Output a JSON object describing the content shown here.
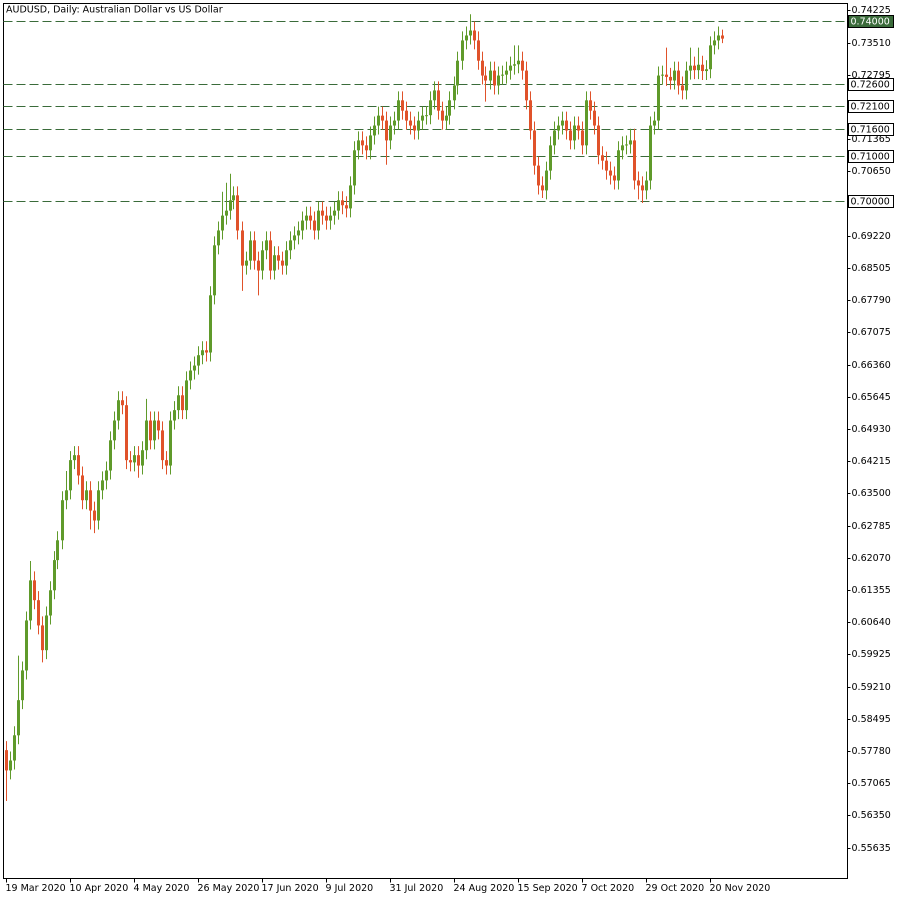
{
  "chart_data": {
    "type": "candlestick",
    "title": "AUDUSD, Daily:  Australian Dollar vs US Dollar",
    "up_color": "#5f9a2a",
    "down_color": "#e0522a",
    "level_color": "#3a6b3a",
    "ylim": [
      0.5495,
      0.7438
    ],
    "xlim": [
      -0.5,
      210.5
    ],
    "yticks": [
      0.74225,
      {
        "value": 0.7351,
        "label": "0.73510"
      },
      0.72795,
      0.71365,
      {
        "value": 0.7065,
        "label": "0.70650"
      },
      {
        "value": 0.6922,
        "label": "0.69220"
      },
      0.68505,
      {
        "value": 0.6779,
        "label": "0.67790"
      },
      0.67075,
      {
        "value": 0.6636,
        "label": "0.66360"
      },
      0.65645,
      {
        "value": 0.6493,
        "label": "0.64930"
      },
      0.64215,
      {
        "value": 0.635,
        "label": "0.63500"
      },
      0.62785,
      {
        "value": 0.6207,
        "label": "0.62070"
      },
      0.61355,
      {
        "value": 0.6064,
        "label": "0.60640"
      },
      0.59925,
      {
        "value": 0.5921,
        "label": "0.59210"
      },
      0.58495,
      {
        "value": 0.5778,
        "label": "0.57780"
      },
      0.57065,
      {
        "value": 0.5635,
        "label": "0.56350"
      },
      0.55635
    ],
    "xticks": [
      {
        "value": 0,
        "label": "19 Mar 2020"
      },
      {
        "value": 16,
        "label": "10 Apr 2020"
      },
      {
        "value": 32,
        "label": "4 May 2020"
      },
      {
        "value": 48,
        "label": "26 May 2020"
      },
      {
        "value": 64,
        "label": "17 Jun 2020"
      },
      {
        "value": 80,
        "label": "9 Jul 2020"
      },
      {
        "value": 96,
        "label": "31 Jul 2020"
      },
      {
        "value": 112,
        "label": "24 Aug 2020"
      },
      {
        "value": 128,
        "label": "15 Sep 2020"
      },
      {
        "value": 144,
        "label": "7 Oct 2020"
      },
      {
        "value": 160,
        "label": "29 Oct 2020"
      },
      {
        "value": 176,
        "label": "20 Nov 2020"
      }
    ],
    "levels": [
      {
        "value": 0.74,
        "label": "0.74000",
        "highlight": true
      },
      {
        "value": 0.726,
        "label": "0.72600"
      },
      {
        "value": 0.721,
        "label": "0.72100"
      },
      {
        "value": 0.716,
        "label": "0.71600"
      },
      {
        "value": 0.71,
        "label": "0.71000"
      },
      {
        "value": 0.7,
        "label": "0.70000"
      }
    ],
    "open": [
      0.578,
      0.5735,
      0.5757,
      0.5813,
      0.5891,
      0.5957,
      0.6068,
      0.6157,
      0.6113,
      0.6057,
      0.6002,
      0.6079,
      0.6135,
      0.6202,
      0.6246,
      0.6335,
      0.6357,
      0.6424,
      0.6435,
      0.639,
      0.6335,
      0.6357,
      0.6312,
      0.629,
      0.6357,
      0.6379,
      0.6401,
      0.6468,
      0.6512,
      0.6557,
      0.6546,
      0.6424,
      0.6419,
      0.6435,
      0.6412,
      0.6446,
      0.6512,
      0.6468,
      0.6512,
      0.649,
      0.6424,
      0.6412,
      0.6512,
      0.6535,
      0.6568,
      0.6535,
      0.6601,
      0.6623,
      0.6634,
      0.6657,
      0.6668,
      0.6663,
      0.679,
      0.6901,
      0.6934,
      0.6967,
      0.6978,
      0.7001,
      0.7012,
      0.6934,
      0.6856,
      0.6867,
      0.6912,
      0.6867,
      0.6845,
      0.689,
      0.6912,
      0.6845,
      0.6879,
      0.6867,
      0.6856,
      0.689,
      0.6912,
      0.6923,
      0.6934,
      0.6956,
      0.6967,
      0.6956,
      0.6934,
      0.6978,
      0.6967,
      0.6956,
      0.6967,
      0.6978,
      0.7001,
      0.699,
      0.6983,
      0.7034,
      0.7112,
      0.7134,
      0.7123,
      0.7112,
      0.7145,
      0.7167,
      0.7189,
      0.7178,
      0.7134,
      0.7167,
      0.7178,
      0.7223,
      0.72,
      0.7178,
      0.7167,
      0.7156,
      0.7178,
      0.7189,
      0.719,
      0.7223,
      0.7245,
      0.72,
      0.7178,
      0.7189,
      0.7223,
      0.7256,
      0.7311,
      0.7356,
      0.7367,
      0.7378,
      0.7356,
      0.7311,
      0.7278,
      0.7267,
      0.7289,
      0.7256,
      0.7278,
      0.728,
      0.7289,
      0.73,
      0.7303,
      0.7311,
      0.7289,
      0.7223,
      0.7156,
      0.7078,
      0.7034,
      0.7023,
      0.7067,
      0.7123,
      0.7156,
      0.7167,
      0.7178,
      0.7156,
      0.7134,
      0.7167,
      0.7156,
      0.7123,
      0.7223,
      0.72,
      0.7167,
      0.7101,
      0.7089,
      0.7067,
      0.7056,
      0.7045,
      0.7112,
      0.7123,
      0.7125,
      0.7134,
      0.7045,
      0.7034,
      0.7023,
      0.7045,
      0.7167,
      0.7178,
      0.7278,
      0.728,
      0.7275,
      0.7267,
      0.7289,
      0.7256,
      0.7245,
      0.7289,
      0.73,
      0.729,
      0.7302,
      0.7288,
      0.7292,
      0.7345,
      0.7356,
      0.7367
    ],
    "high": [
      0.58,
      0.5777,
      0.5833,
      0.599,
      0.5977,
      0.6088,
      0.62,
      0.6177,
      0.6133,
      0.6077,
      0.6099,
      0.6155,
      0.6222,
      0.6266,
      0.6355,
      0.64,
      0.6444,
      0.6455,
      0.6455,
      0.641,
      0.6377,
      0.6377,
      0.6332,
      0.6377,
      0.6399,
      0.6421,
      0.6488,
      0.6532,
      0.6577,
      0.6577,
      0.6566,
      0.6444,
      0.6455,
      0.6455,
      0.6466,
      0.656,
      0.6532,
      0.6532,
      0.6532,
      0.651,
      0.6444,
      0.6532,
      0.6555,
      0.6588,
      0.6588,
      0.6621,
      0.6643,
      0.6654,
      0.6677,
      0.6688,
      0.6688,
      0.681,
      0.6921,
      0.6954,
      0.702,
      0.704,
      0.706,
      0.7032,
      0.7032,
      0.6954,
      0.6887,
      0.6932,
      0.6932,
      0.6887,
      0.691,
      0.6932,
      0.6932,
      0.6899,
      0.6899,
      0.6887,
      0.691,
      0.6932,
      0.6943,
      0.6954,
      0.6976,
      0.6987,
      0.6987,
      0.6976,
      0.6998,
      0.6998,
      0.6987,
      0.6987,
      0.6998,
      0.7021,
      0.7021,
      0.701,
      0.7054,
      0.7132,
      0.7154,
      0.7154,
      0.7143,
      0.7165,
      0.7187,
      0.7209,
      0.7209,
      0.7198,
      0.7187,
      0.7198,
      0.7243,
      0.7243,
      0.722,
      0.7198,
      0.7187,
      0.7198,
      0.7209,
      0.721,
      0.7243,
      0.7265,
      0.7265,
      0.722,
      0.7209,
      0.7243,
      0.7276,
      0.7331,
      0.7376,
      0.7387,
      0.7414,
      0.7398,
      0.7376,
      0.7331,
      0.7298,
      0.7309,
      0.7309,
      0.7298,
      0.73,
      0.7309,
      0.732,
      0.7345,
      0.7345,
      0.7331,
      0.7309,
      0.7243,
      0.7176,
      0.7098,
      0.7054,
      0.7087,
      0.7143,
      0.7176,
      0.7187,
      0.7198,
      0.7198,
      0.7176,
      0.7187,
      0.7187,
      0.7176,
      0.7243,
      0.7243,
      0.722,
      0.7187,
      0.7121,
      0.7109,
      0.7087,
      0.7076,
      0.7132,
      0.7143,
      0.7145,
      0.716,
      0.716,
      0.7065,
      0.7054,
      0.7065,
      0.7187,
      0.7198,
      0.7298,
      0.73,
      0.734,
      0.7295,
      0.7309,
      0.7309,
      0.7276,
      0.7309,
      0.734,
      0.732,
      0.734,
      0.7322,
      0.7312,
      0.7365,
      0.7376,
      0.7387,
      0.738
    ],
    "low": [
      0.5667,
      0.5715,
      0.5737,
      0.5793,
      0.5871,
      0.5937,
      0.6048,
      0.6093,
      0.6037,
      0.5975,
      0.5982,
      0.6059,
      0.6115,
      0.6182,
      0.6226,
      0.6315,
      0.6337,
      0.6404,
      0.637,
      0.6315,
      0.6315,
      0.627,
      0.6262,
      0.627,
      0.6337,
      0.6359,
      0.6381,
      0.6448,
      0.6492,
      0.6526,
      0.6404,
      0.6399,
      0.6399,
      0.6385,
      0.6392,
      0.6426,
      0.6448,
      0.6448,
      0.647,
      0.6404,
      0.6392,
      0.6392,
      0.6492,
      0.6515,
      0.6515,
      0.6515,
      0.6581,
      0.6603,
      0.6614,
      0.6637,
      0.6643,
      0.6643,
      0.677,
      0.6881,
      0.6914,
      0.6947,
      0.6958,
      0.6981,
      0.6914,
      0.68,
      0.6836,
      0.6847,
      0.6847,
      0.679,
      0.6825,
      0.687,
      0.6825,
      0.6825,
      0.6847,
      0.6836,
      0.6836,
      0.687,
      0.6892,
      0.6903,
      0.6914,
      0.6936,
      0.6936,
      0.6914,
      0.6914,
      0.6947,
      0.6936,
      0.6936,
      0.6947,
      0.6958,
      0.697,
      0.6963,
      0.6963,
      0.7014,
      0.7092,
      0.7103,
      0.7092,
      0.7092,
      0.7125,
      0.7147,
      0.7158,
      0.708,
      0.7114,
      0.7147,
      0.7158,
      0.718,
      0.7158,
      0.7147,
      0.7136,
      0.7136,
      0.7158,
      0.7169,
      0.717,
      0.7203,
      0.718,
      0.7158,
      0.7158,
      0.7169,
      0.7203,
      0.7236,
      0.7291,
      0.7336,
      0.7347,
      0.7336,
      0.7291,
      0.7258,
      0.722,
      0.7247,
      0.7236,
      0.7236,
      0.7258,
      0.726,
      0.7269,
      0.728,
      0.7283,
      0.7269,
      0.7203,
      0.7136,
      0.7058,
      0.7014,
      0.7006,
      0.7003,
      0.7047,
      0.7103,
      0.7136,
      0.7147,
      0.7136,
      0.7114,
      0.7114,
      0.7136,
      0.7103,
      0.7103,
      0.718,
      0.7147,
      0.7081,
      0.7069,
      0.7047,
      0.7036,
      0.7025,
      0.7025,
      0.7092,
      0.7103,
      0.7105,
      0.7025,
      0.7003,
      0.6995,
      0.7003,
      0.7025,
      0.7147,
      0.7158,
      0.7258,
      0.7255,
      0.7247,
      0.7247,
      0.7236,
      0.7225,
      0.7225,
      0.7269,
      0.727,
      0.727,
      0.7268,
      0.7268,
      0.7272,
      0.7325,
      0.7336,
      0.735
    ],
    "close": [
      0.5735,
      0.5757,
      0.5813,
      0.5891,
      0.5957,
      0.6068,
      0.6157,
      0.6113,
      0.6057,
      0.6002,
      0.6079,
      0.6135,
      0.6202,
      0.6246,
      0.6335,
      0.6357,
      0.6424,
      0.6435,
      0.639,
      0.6335,
      0.6357,
      0.6312,
      0.629,
      0.6357,
      0.6379,
      0.6401,
      0.6468,
      0.6512,
      0.6557,
      0.6546,
      0.6424,
      0.6419,
      0.6435,
      0.6412,
      0.6446,
      0.6512,
      0.6468,
      0.6512,
      0.649,
      0.6424,
      0.6412,
      0.6512,
      0.6535,
      0.6568,
      0.6535,
      0.6601,
      0.6623,
      0.6634,
      0.6657,
      0.6668,
      0.6663,
      0.679,
      0.6901,
      0.6934,
      0.6967,
      0.6978,
      0.7001,
      0.7012,
      0.6934,
      0.6856,
      0.6867,
      0.6912,
      0.6867,
      0.6845,
      0.689,
      0.6912,
      0.6845,
      0.6879,
      0.6867,
      0.6856,
      0.689,
      0.6912,
      0.6923,
      0.6934,
      0.6956,
      0.6967,
      0.6956,
      0.6934,
      0.6978,
      0.6967,
      0.6956,
      0.6967,
      0.6978,
      0.7001,
      0.699,
      0.6983,
      0.7034,
      0.7112,
      0.7134,
      0.7123,
      0.7112,
      0.7145,
      0.7167,
      0.7189,
      0.7178,
      0.7134,
      0.7167,
      0.7178,
      0.7223,
      0.72,
      0.7178,
      0.7167,
      0.7156,
      0.7178,
      0.7189,
      0.719,
      0.7223,
      0.7245,
      0.72,
      0.7178,
      0.7189,
      0.7223,
      0.7256,
      0.7311,
      0.7356,
      0.7367,
      0.7378,
      0.7356,
      0.7311,
      0.7278,
      0.7267,
      0.7289,
      0.7256,
      0.7278,
      0.728,
      0.7289,
      0.73,
      0.7303,
      0.7311,
      0.7289,
      0.7223,
      0.7156,
      0.7078,
      0.7034,
      0.7023,
      0.7067,
      0.7123,
      0.7156,
      0.7167,
      0.7178,
      0.7156,
      0.7134,
      0.7167,
      0.7156,
      0.7123,
      0.7223,
      0.72,
      0.7167,
      0.7101,
      0.7089,
      0.7067,
      0.7056,
      0.7045,
      0.7112,
      0.7123,
      0.7125,
      0.7134,
      0.7045,
      0.7034,
      0.7023,
      0.7045,
      0.7167,
      0.7178,
      0.7278,
      0.728,
      0.7275,
      0.7267,
      0.7289,
      0.7256,
      0.7245,
      0.7289,
      0.73,
      0.729,
      0.7302,
      0.7288,
      0.7292,
      0.7345,
      0.7356,
      0.7367,
      0.736
    ]
  }
}
